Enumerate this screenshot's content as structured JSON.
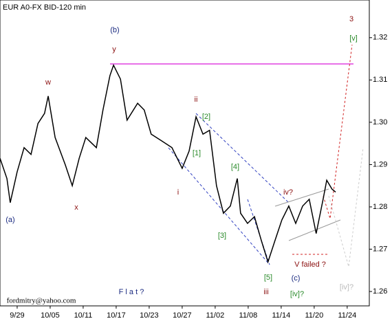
{
  "chart_data": {
    "type": "line",
    "title": "EUR A0-FX BID-120 min",
    "x": [
      -0.52,
      -0.31,
      -0.21,
      0,
      0.21,
      0.42,
      0.63,
      0.83,
      0.94,
      1.15,
      1.46,
      1.67,
      1.88,
      2.08,
      2.4,
      2.6,
      2.81,
      2.92,
      3.13,
      3.33,
      3.65,
      3.85,
      4.06,
      4.38,
      4.69,
      5,
      5.21,
      5.42,
      5.63,
      5.83,
      6.04,
      6.25,
      6.46,
      6.67,
      6.77,
      6.98,
      7.19,
      7.4,
      7.6,
      7.81,
      8.02,
      8.23,
      8.44,
      8.65,
      8.85,
      9.06,
      9.27,
      9.38,
      9.54,
      9.65
    ],
    "values": [
      1.2915,
      1.2867,
      1.281,
      1.2883,
      1.294,
      1.2924,
      1.2997,
      1.3021,
      1.3062,
      1.2964,
      1.2899,
      1.285,
      1.2915,
      1.2964,
      1.294,
      1.3029,
      1.311,
      1.3135,
      1.3102,
      1.3005,
      1.3045,
      1.3029,
      1.2972,
      1.2956,
      1.294,
      1.2891,
      1.2932,
      1.3013,
      1.2972,
      1.2981,
      1.285,
      1.2785,
      1.2802,
      1.2867,
      1.2785,
      1.2761,
      1.2777,
      1.272,
      1.267,
      1.272,
      1.2769,
      1.2802,
      1.2761,
      1.2802,
      1.2818,
      1.2737,
      1.2818,
      1.2863,
      1.2842,
      1.2835
    ],
    "color": "#000000",
    "xlim": [
      -0.52,
      10.67
    ],
    "xticks": [
      {
        "value": 0,
        "label": "9/29"
      },
      {
        "value": 1,
        "label": "10/05"
      },
      {
        "value": 2,
        "label": "10/11"
      },
      {
        "value": 3,
        "label": "10/17"
      },
      {
        "value": 4,
        "label": "10/23"
      },
      {
        "value": 5,
        "label": "10/27"
      },
      {
        "value": 6,
        "label": "11/02"
      },
      {
        "value": 7,
        "label": "11/08"
      },
      {
        "value": 8,
        "label": "11/14"
      },
      {
        "value": 9,
        "label": "11/20"
      },
      {
        "value": 10,
        "label": "11/24"
      }
    ],
    "ylim": [
      1.2566,
      1.3289
    ],
    "yticks": [
      1.26,
      1.27,
      1.28,
      1.29,
      {
        "value": 1.3,
        "label": "1.30"
      },
      1.31,
      1.32
    ],
    "annotations": [
      "3",
      "[v]",
      "(b)",
      "y",
      "w",
      "x",
      "ii",
      "[2]",
      "[1]",
      "[4]",
      "i",
      "iv?",
      "[3]",
      "(a)",
      "V failed ?",
      "[5]",
      "(c)",
      "iii",
      "[iv]?",
      "[iv]?",
      "F l a t ?",
      "fordmitry@yahoo.com"
    ]
  }
}
